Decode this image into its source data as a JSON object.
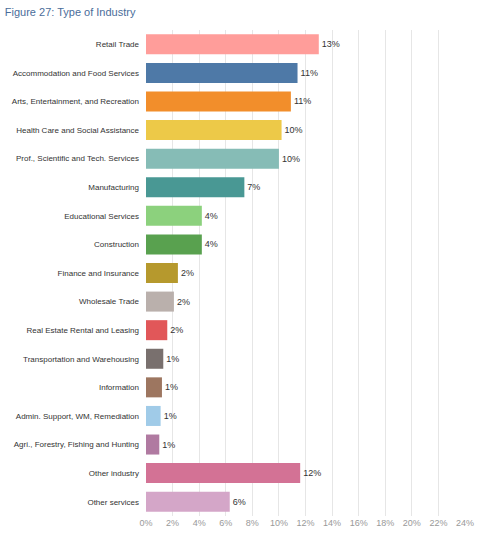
{
  "chart_data": {
    "type": "bar",
    "orientation": "horizontal",
    "title": "Figure 27: Type of Industry",
    "categories": [
      "Retail Trade",
      "Accommodation and Food Services",
      "Arts, Entertainment, and Recreation",
      "Health Care and Social Assistance",
      "Prof., Scientific and Tech. Services",
      "Manufacturing",
      "Educational Services",
      "Construction",
      "Finance and Insurance",
      "Wholesale Trade",
      "Real Estate Rental and Leasing",
      "Transportation and Warehousing",
      "Information",
      "Admin. Support, WM, Remediation",
      "Agri., Forestry, Fishing and Hunting",
      "Other industry",
      "Other services"
    ],
    "values": [
      13.0,
      11.4,
      10.9,
      10.2,
      10.0,
      7.4,
      4.2,
      4.2,
      2.4,
      2.1,
      1.6,
      1.3,
      1.2,
      1.1,
      1.0,
      11.6,
      6.3
    ],
    "value_labels": [
      "13%",
      "11%",
      "11%",
      "10%",
      "10%",
      "7%",
      "4%",
      "4%",
      "2%",
      "2%",
      "2%",
      "1%",
      "1%",
      "1%",
      "1%",
      "12%",
      "6%"
    ],
    "colors": [
      "#ff9d9a",
      "#4e79a7",
      "#f28e2b",
      "#edc948",
      "#86bcb6",
      "#499894",
      "#8cd17d",
      "#59a14f",
      "#b6992d",
      "#bab0ac",
      "#e15759",
      "#79706e",
      "#9d7660",
      "#a0cbe8",
      "#b07aa1",
      "#d37295",
      "#d4a6c8"
    ],
    "data_labels": true,
    "xlim": [
      0,
      24
    ],
    "xticks": [
      {
        "value": 0,
        "label": "0%"
      },
      {
        "value": 2,
        "label": "2%"
      },
      {
        "value": 4,
        "label": "4%"
      },
      {
        "value": 6,
        "label": "6%"
      },
      {
        "value": 8,
        "label": "8%"
      },
      {
        "value": 10,
        "label": "10%"
      },
      {
        "value": 12,
        "label": "12%"
      },
      {
        "value": 14,
        "label": "14%"
      },
      {
        "value": 16,
        "label": "16%"
      },
      {
        "value": 18,
        "label": "18%"
      },
      {
        "value": 20,
        "label": "20%"
      },
      {
        "value": 22,
        "label": "22%"
      },
      {
        "value": 24,
        "label": "24%"
      }
    ],
    "grid": true
  }
}
